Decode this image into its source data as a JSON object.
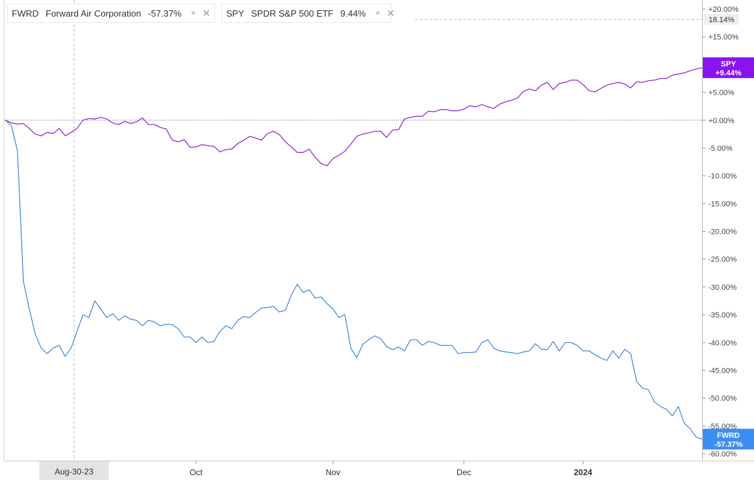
{
  "legend": [
    {
      "symbol": "FWRD",
      "name": "Forward Air Corporation",
      "change": "-57.37%",
      "color": "#2e7fd6",
      "icon": "wand-icon"
    },
    {
      "symbol": "SPY",
      "name": "SPDR S&P 500 ETF",
      "change": "9.44%",
      "color": "#7a1fd1",
      "icon": "wand-icon"
    }
  ],
  "crosshair": {
    "x_label": "Aug-30-23",
    "y_label": "18.14%"
  },
  "price_tags": [
    {
      "symbol": "SPY",
      "text": "+9.44%",
      "value": 9.44,
      "color": "#8a14f0"
    },
    {
      "symbol": "FWRD",
      "text": "-57.37%",
      "value": -57.37,
      "color": "#3d8ef2"
    }
  ],
  "chart_data": {
    "type": "line",
    "ylim": [
      -60.5,
      20.5
    ],
    "y_ticks": [
      "+20.00%",
      "+15.00%",
      "+10.00%",
      "+5.00%",
      "+0.00%",
      "-5.00%",
      "-10.00%",
      "-15.00%",
      "-20.00%",
      "-25.00%",
      "-30.00%",
      "-35.00%",
      "-40.00%",
      "-45.00%",
      "-50.00%",
      "-55.00%",
      "-60.00%"
    ],
    "y_tick_values": [
      20,
      15,
      10,
      5,
      0,
      -5,
      -10,
      -15,
      -20,
      -25,
      -30,
      -35,
      -40,
      -45,
      -50,
      -55,
      -60
    ],
    "x_labels": [
      {
        "label": "Oct",
        "index": 32
      },
      {
        "label": "Nov",
        "index": 55
      },
      {
        "label": "Dec",
        "index": 77
      },
      {
        "label": "2024",
        "index": 97
      }
    ],
    "zero_line": 0,
    "series": [
      {
        "name": "FWRD",
        "color": "#3a87dc",
        "values": [
          0,
          -1,
          -5.5,
          -29,
          -34,
          -38.5,
          -41,
          -42,
          -41,
          -40.5,
          -42.5,
          -41,
          -38,
          -35,
          -35.5,
          -32.5,
          -34,
          -35.5,
          -34.8,
          -36,
          -35.2,
          -35.8,
          -36,
          -37,
          -36,
          -36.3,
          -37,
          -36.7,
          -36.8,
          -37.5,
          -39,
          -39,
          -40,
          -39,
          -40,
          -39.8,
          -38,
          -37,
          -37.5,
          -36,
          -35.3,
          -35.5,
          -34.6,
          -33.8,
          -33.7,
          -33.5,
          -34.5,
          -34.2,
          -31.5,
          -29.5,
          -31,
          -30.5,
          -32,
          -31.8,
          -33,
          -34,
          -35.5,
          -35,
          -41,
          -42.7,
          -40.3,
          -39.5,
          -38.8,
          -39.3,
          -40.7,
          -41.3,
          -40.8,
          -41.5,
          -39.5,
          -39.5,
          -40.5,
          -39.8,
          -40,
          -40.5,
          -40.5,
          -40.5,
          -42,
          -41.8,
          -41.8,
          -41.7,
          -40,
          -39.5,
          -41,
          -41.5,
          -41.7,
          -41.8,
          -42,
          -41.7,
          -41.5,
          -40.2,
          -41.2,
          -41.3,
          -39.8,
          -41.5,
          -40,
          -40,
          -40.5,
          -41.5,
          -41.5,
          -42.2,
          -42.8,
          -43.2,
          -41.5,
          -42.8,
          -41.2,
          -42,
          -47,
          -48.2,
          -48.5,
          -50.7,
          -51.5,
          -52,
          -53.2,
          -51.5,
          -54.5,
          -55.5,
          -57,
          -57.37
        ]
      },
      {
        "name": "SPY",
        "color": "#8a20d8",
        "values": [
          0,
          -0.5,
          -0.7,
          -0.6,
          -1.5,
          -2.5,
          -2.8,
          -2.2,
          -2.4,
          -1.5,
          -2.8,
          -2.2,
          -1.5,
          0,
          0.3,
          0.2,
          0.5,
          0.2,
          -0.5,
          -0.8,
          -0.2,
          -0.6,
          -0.3,
          0.4,
          -0.8,
          -0.8,
          -1.3,
          -1.6,
          -3.6,
          -3.9,
          -3.5,
          -4.9,
          -4.8,
          -4.4,
          -4.6,
          -4.7,
          -5.7,
          -5.3,
          -5.2,
          -4.2,
          -3.6,
          -2.9,
          -3.2,
          -3.6,
          -2.4,
          -2,
          -2.6,
          -3.9,
          -4.8,
          -5.8,
          -5.8,
          -5.2,
          -6.7,
          -7.8,
          -8.2,
          -6.9,
          -6.3,
          -5.6,
          -4.3,
          -2.9,
          -2.5,
          -2.3,
          -2,
          -2,
          -3.1,
          -1.8,
          -1.7,
          0.2,
          0.5,
          0.7,
          0.7,
          1.6,
          1.5,
          1.9,
          1.9,
          1.7,
          1.7,
          2,
          2.6,
          2.4,
          2.8,
          2.4,
          2.1,
          2.9,
          3.3,
          3.6,
          4,
          5.2,
          5.6,
          5.3,
          6.3,
          6.8,
          5.5,
          6.6,
          6.8,
          7.2,
          7.2,
          6.4,
          5.3,
          5.1,
          5.7,
          6.3,
          6.6,
          6.8,
          6.5,
          5.8,
          6.9,
          6.8,
          7.1,
          7.2,
          7.5,
          7.5,
          8.1,
          8.3,
          8.5,
          8.9,
          9.2,
          9.44
        ]
      }
    ]
  }
}
